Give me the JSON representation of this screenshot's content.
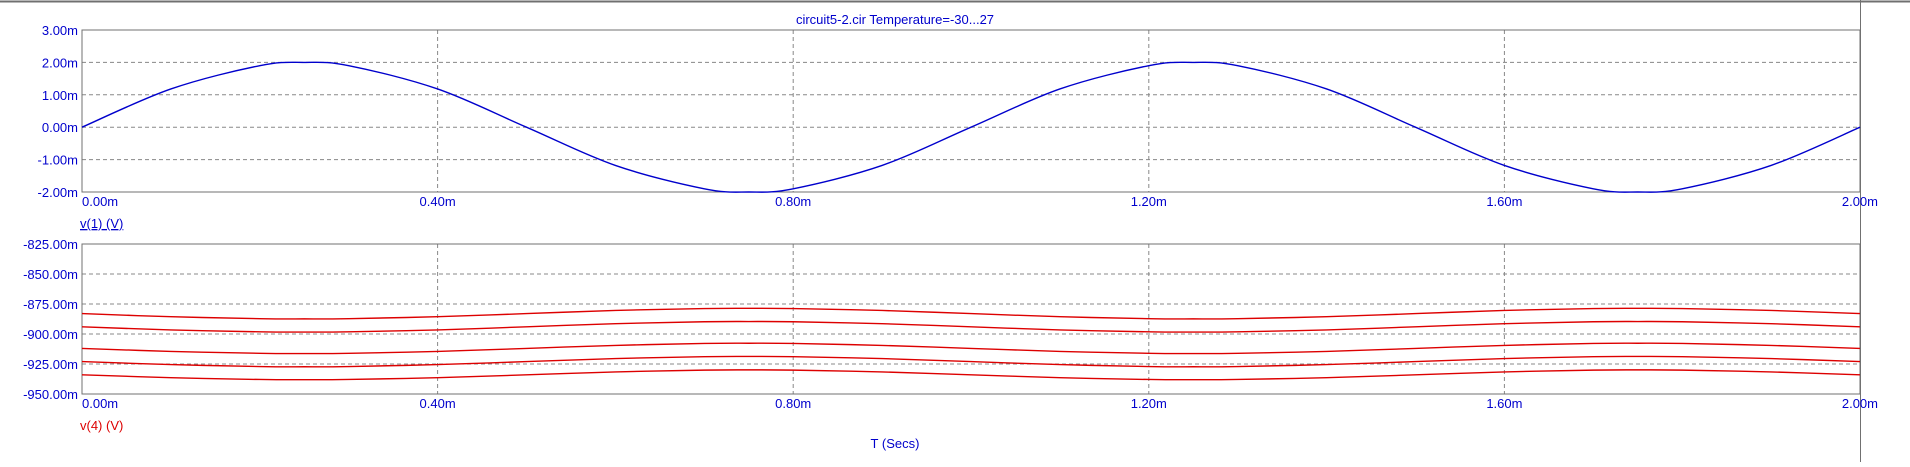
{
  "title": "circuit5-2.cir Temperature=-30...27",
  "x_axis_label": "T (Secs)",
  "colors": {
    "blue": "#0000cc",
    "red": "#dd0000",
    "grid": "#888888",
    "frame": "#707070",
    "background": "#ffffff"
  },
  "chart_data": [
    {
      "type": "line",
      "title": "circuit5-2.cir Temperature=-30...27",
      "trace_label": "v(1) (V)",
      "xlabel": "",
      "ylabel": "",
      "xlim": [
        0,
        2.0
      ],
      "ylim": [
        -2.0,
        3.0
      ],
      "x_ticks": [
        "0.00m",
        "0.40m",
        "0.80m",
        "1.20m",
        "1.60m",
        "2.00m"
      ],
      "y_ticks": [
        "3.00m",
        "2.00m",
        "1.00m",
        "0.00m",
        "-1.00m",
        "-2.00m"
      ],
      "grid": true,
      "x": [
        0,
        0.1,
        0.2,
        0.25,
        0.3,
        0.4,
        0.5,
        0.6,
        0.7,
        0.75,
        0.8,
        0.9,
        1.0,
        1.1,
        1.2,
        1.25,
        1.3,
        1.4,
        1.5,
        1.6,
        1.7,
        1.75,
        1.8,
        1.9,
        2.0
      ],
      "series": [
        {
          "values": [
            0.0,
            1.18,
            1.9,
            2.0,
            1.9,
            1.18,
            0.0,
            -1.18,
            -1.9,
            -2.0,
            -1.9,
            -1.18,
            0.0,
            1.18,
            1.9,
            2.0,
            1.9,
            1.18,
            0.0,
            -1.18,
            -1.9,
            -2.0,
            -1.9,
            -1.18,
            0.0
          ]
        }
      ]
    },
    {
      "type": "line",
      "title": "",
      "trace_label": "v(4) (V)",
      "xlabel": "T (Secs)",
      "ylabel": "",
      "xlim": [
        0,
        2.0
      ],
      "ylim": [
        -950.0,
        -825.0
      ],
      "x_ticks": [
        "0.00m",
        "0.40m",
        "0.80m",
        "1.20m",
        "1.60m",
        "2.00m"
      ],
      "y_ticks": [
        "-825.00m",
        "-850.00m",
        "-875.00m",
        "-900.00m",
        "-925.00m",
        "-950.00m"
      ],
      "grid": true,
      "x": [
        0,
        0.1,
        0.2,
        0.25,
        0.3,
        0.4,
        0.5,
        0.6,
        0.7,
        0.75,
        0.8,
        0.9,
        1.0,
        1.1,
        1.2,
        1.25,
        1.3,
        1.4,
        1.5,
        1.6,
        1.7,
        1.75,
        1.8,
        1.9,
        2.0
      ],
      "series": [
        {
          "values": [
            -883.0,
            -885.6,
            -887.2,
            -887.4,
            -887.2,
            -885.6,
            -883.0,
            -880.4,
            -878.8,
            -878.6,
            -878.8,
            -880.4,
            -883.0,
            -885.6,
            -887.2,
            -887.4,
            -887.2,
            -885.6,
            -883.0,
            -880.4,
            -878.8,
            -878.6,
            -878.8,
            -880.4,
            -883.0
          ]
        },
        {
          "values": [
            -894.0,
            -896.6,
            -898.2,
            -898.4,
            -898.2,
            -896.6,
            -894.0,
            -891.4,
            -889.8,
            -889.6,
            -889.8,
            -891.4,
            -894.0,
            -896.6,
            -898.2,
            -898.4,
            -898.2,
            -896.6,
            -894.0,
            -891.4,
            -889.8,
            -889.6,
            -889.8,
            -891.4,
            -894.0
          ]
        },
        {
          "values": [
            -912.0,
            -914.5,
            -916.1,
            -916.3,
            -916.1,
            -914.5,
            -912.0,
            -909.5,
            -907.9,
            -907.7,
            -907.9,
            -909.5,
            -912.0,
            -914.5,
            -916.1,
            -916.3,
            -916.1,
            -914.5,
            -912.0,
            -909.5,
            -907.9,
            -907.7,
            -907.9,
            -909.5,
            -912.0
          ]
        },
        {
          "values": [
            -923.0,
            -925.5,
            -927.1,
            -927.3,
            -927.1,
            -925.5,
            -923.0,
            -920.5,
            -918.9,
            -918.7,
            -918.9,
            -920.5,
            -923.0,
            -925.5,
            -927.1,
            -927.3,
            -927.1,
            -925.5,
            -923.0,
            -920.5,
            -918.9,
            -918.7,
            -918.9,
            -920.5,
            -923.0
          ]
        },
        {
          "values": [
            -934.0,
            -936.4,
            -937.9,
            -938.1,
            -937.9,
            -936.4,
            -934.0,
            -931.6,
            -930.1,
            -929.9,
            -930.1,
            -931.6,
            -934.0,
            -936.4,
            -937.9,
            -938.1,
            -937.9,
            -936.4,
            -934.0,
            -931.6,
            -930.1,
            -929.9,
            -930.1,
            -931.6,
            -934.0
          ]
        }
      ]
    }
  ]
}
